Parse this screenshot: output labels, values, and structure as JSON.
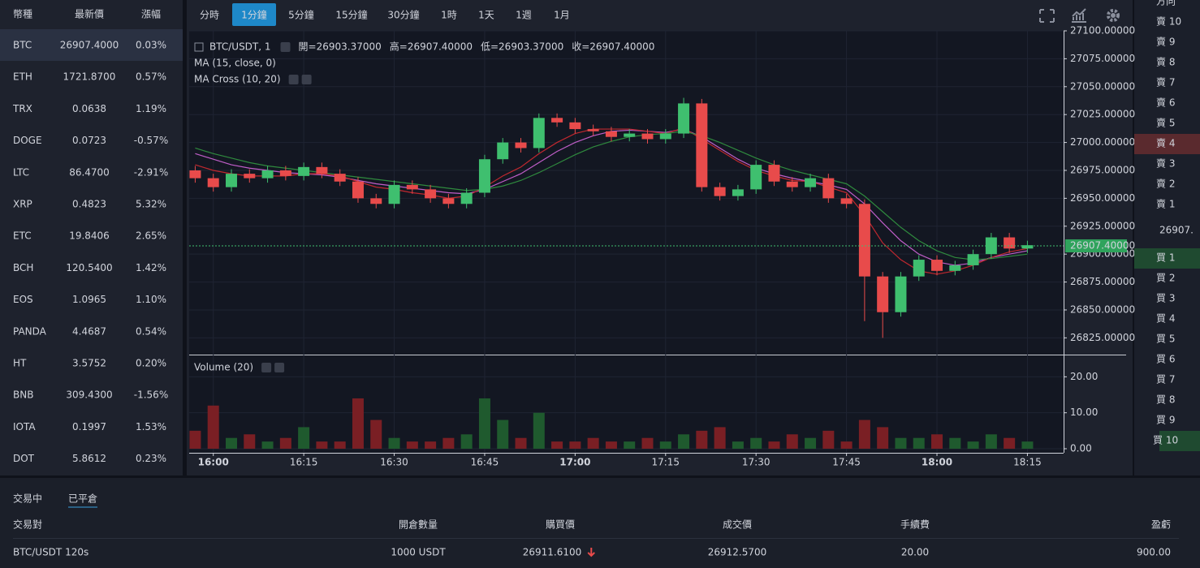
{
  "markets": {
    "headers": [
      "幣種",
      "最新價",
      "漲幅"
    ],
    "rows": [
      [
        "BTC",
        "26907.4000",
        "0.03%"
      ],
      [
        "ETH",
        "1721.8700",
        "0.57%"
      ],
      [
        "TRX",
        "0.0638",
        "1.19%"
      ],
      [
        "DOGE",
        "0.0723",
        "-0.57%"
      ],
      [
        "LTC",
        "86.4700",
        "-2.91%"
      ],
      [
        "XRP",
        "0.4823",
        "5.32%"
      ],
      [
        "ETC",
        "19.8406",
        "2.65%"
      ],
      [
        "BCH",
        "120.5400",
        "1.42%"
      ],
      [
        "EOS",
        "1.0965",
        "1.10%"
      ],
      [
        "PANDA",
        "4.4687",
        "0.54%"
      ],
      [
        "HT",
        "3.5752",
        "0.20%"
      ],
      [
        "BNB",
        "309.4300",
        "-1.56%"
      ],
      [
        "IOTA",
        "0.1997",
        "1.53%"
      ],
      [
        "DOT",
        "5.8612",
        "0.23%"
      ]
    ],
    "selected": 0
  },
  "toolbar": {
    "intervals": [
      "分時",
      "1分鐘",
      "5分鐘",
      "15分鐘",
      "30分鐘",
      "1時",
      "1天",
      "1週",
      "1月"
    ],
    "selected": 1
  },
  "chart_data": {
    "type": "candlestick",
    "title": "BTC/USDT, 1",
    "ohlc_legend": [
      {
        "label": "開=",
        "value": "26903.37000"
      },
      {
        "label": "高=",
        "value": "26907.40000"
      },
      {
        "label": "低=",
        "value": "26903.37000"
      },
      {
        "label": "收=",
        "value": "26907.40000"
      }
    ],
    "indicators": [
      "MA (15, close, 0)",
      "MA Cross (10, 20)"
    ],
    "volume_label": "Volume (20)",
    "up_color": "#3fbf6f",
    "down_color": "#e84b4b",
    "x": [
      "15:57",
      "16:00",
      "16:03",
      "16:06",
      "16:09",
      "16:12",
      "16:15",
      "16:18",
      "16:21",
      "16:24",
      "16:27",
      "16:30",
      "16:33",
      "16:36",
      "16:39",
      "16:42",
      "16:45",
      "16:48",
      "16:51",
      "16:54",
      "16:57",
      "17:00",
      "17:03",
      "17:06",
      "17:09",
      "17:12",
      "17:15",
      "17:18",
      "17:21",
      "17:24",
      "17:27",
      "17:30",
      "17:33",
      "17:36",
      "17:39",
      "17:42",
      "17:45",
      "17:48",
      "17:51",
      "17:54",
      "17:57",
      "18:00",
      "18:03",
      "18:06",
      "18:09",
      "18:12",
      "18:15"
    ],
    "open": [
      26975,
      26968,
      26960,
      26972,
      26968,
      26975,
      26970,
      26978,
      26972,
      26965,
      26950,
      26945,
      26962,
      26958,
      26950,
      26945,
      26955,
      26985,
      27000,
      26995,
      27022,
      27018,
      27012,
      27010,
      27005,
      27008,
      27003,
      27008,
      27035,
      26960,
      26952,
      26958,
      26980,
      26965,
      26960,
      26968,
      26950,
      26945,
      26880,
      26848,
      26880,
      26895,
      26885,
      26890,
      26900,
      26915,
      26905
    ],
    "high": [
      26979,
      26972,
      26976,
      26976,
      26979,
      26979,
      26982,
      26982,
      26976,
      26969,
      26954,
      26966,
      26966,
      26962,
      26954,
      26959,
      26989,
      27004,
      27004,
      27026,
      27026,
      27022,
      27016,
      27014,
      27012,
      27012,
      27012,
      27040,
      27039,
      26964,
      26962,
      26984,
      26984,
      26969,
      26972,
      26972,
      26954,
      26949,
      26884,
      26884,
      26899,
      26899,
      26894,
      26904,
      26919,
      26919,
      26912
    ],
    "low": [
      26964,
      26956,
      26956,
      26964,
      26964,
      26966,
      26966,
      26968,
      26961,
      26946,
      26941,
      26941,
      26954,
      26946,
      26941,
      26941,
      26951,
      26981,
      26991,
      26991,
      27014,
      27008,
      27006,
      27001,
      27001,
      26999,
      26999,
      27004,
      26956,
      26948,
      26948,
      26954,
      26961,
      26956,
      26956,
      26946,
      26941,
      26840,
      26825,
      26844,
      26876,
      26881,
      26881,
      26886,
      26896,
      26901,
      26901
    ],
    "close": [
      26968,
      26960,
      26972,
      26968,
      26975,
      26970,
      26978,
      26972,
      26965,
      26950,
      26945,
      26962,
      26958,
      26950,
      26945,
      26955,
      26985,
      27000,
      26995,
      27022,
      27018,
      27012,
      27010,
      27005,
      27008,
      27003,
      27008,
      27035,
      26960,
      26952,
      26958,
      26980,
      26965,
      26960,
      26968,
      26950,
      26945,
      26880,
      26848,
      26880,
      26895,
      26885,
      26890,
      26900,
      26915,
      26905,
      26908
    ],
    "volume": [
      5,
      12,
      3,
      4,
      2,
      3,
      6,
      2,
      2,
      14,
      8,
      3,
      2,
      2,
      3,
      4,
      14,
      8,
      3,
      10,
      2,
      2,
      3,
      2,
      2,
      3,
      2,
      4,
      5,
      6,
      2,
      3,
      2,
      4,
      3,
      5,
      2,
      8,
      6,
      3,
      3,
      4,
      3,
      2,
      4,
      3,
      2
    ],
    "lines": [
      {
        "color": "#c05ec8",
        "values": [
          26990,
          26985,
          26980,
          26977,
          26975,
          26973,
          26972,
          26971,
          26969,
          26966,
          26963,
          26961,
          26959,
          26957,
          26955,
          26954,
          26958,
          26965,
          26972,
          26982,
          26992,
          27000,
          27006,
          27010,
          27011,
          27010,
          27009,
          27012,
          27005,
          26995,
          26985,
          26977,
          26972,
          26968,
          26965,
          26962,
          26958,
          26945,
          26928,
          26912,
          26900,
          26893,
          26890,
          26892,
          26897,
          26900,
          26903
        ]
      },
      {
        "color": "#c0282f",
        "values": [
          26980,
          26975,
          26972,
          26970,
          26970,
          26970,
          26972,
          26972,
          26970,
          26965,
          26960,
          26958,
          26955,
          26953,
          26950,
          26952,
          26960,
          26970,
          26978,
          26990,
          27000,
          27008,
          27012,
          27012,
          27012,
          27010,
          27008,
          27013,
          27003,
          26993,
          26983,
          26975,
          26970,
          26966,
          26965,
          26960,
          26955,
          26935,
          26910,
          26895,
          26885,
          26882,
          26885,
          26890,
          26897,
          26902,
          26905
        ]
      },
      {
        "color": "#2f8a3e",
        "values": [
          26995,
          26990,
          26986,
          26982,
          26979,
          26977,
          26975,
          26973,
          26971,
          26969,
          26967,
          26965,
          26963,
          26961,
          26959,
          26957,
          26958,
          26961,
          26966,
          26973,
          26981,
          26989,
          26996,
          27001,
          27005,
          27007,
          27008,
          27010,
          27006,
          27000,
          26993,
          26986,
          26980,
          26975,
          26971,
          26967,
          26963,
          26952,
          26938,
          26924,
          26912,
          26903,
          26897,
          26895,
          26896,
          26898,
          26900
        ]
      }
    ],
    "xlim": [
      "15:56",
      "18:21"
    ],
    "xticks": [
      "16:00",
      "16:15",
      "16:30",
      "16:45",
      "17:00",
      "17:15",
      "17:30",
      "17:45",
      "18:00",
      "18:15"
    ],
    "ylim": [
      26810,
      27100
    ],
    "yticks": [
      {
        "value": 26825,
        "label": "26825.00000"
      },
      {
        "value": 26850,
        "label": "26850.00000"
      },
      {
        "value": 26875,
        "label": "26875.00000"
      },
      {
        "value": 26900,
        "label": "26900.00000"
      },
      {
        "value": 26925,
        "label": "26925.00000"
      },
      {
        "value": 26950,
        "label": "26950.00000"
      },
      {
        "value": 26975,
        "label": "26975.00000"
      },
      {
        "value": 27000,
        "label": "27000.00000"
      },
      {
        "value": 27025,
        "label": "27025.00000"
      },
      {
        "value": 27050,
        "label": "27050.00000"
      },
      {
        "value": 27075,
        "label": "27075.00000"
      },
      {
        "value": 27100,
        "label": "27100.00000"
      }
    ],
    "last_price": {
      "value": 26907.4,
      "label": "26907.40000"
    },
    "y2lim": [
      0,
      25.5
    ],
    "y2ticks": [
      {
        "value": 0,
        "label": "0.00"
      },
      {
        "value": 10,
        "label": "10.00"
      },
      {
        "value": 20,
        "label": "20.00"
      }
    ],
    "grid": true
  },
  "order_book": {
    "header": "方向",
    "asks": [
      "賣 10",
      "賣 9",
      "賣 8",
      "賣 7",
      "賣 6",
      "賣 5",
      "賣 4",
      "賣 3",
      "賣 2",
      "賣 1"
    ],
    "highlight_ask": 6,
    "price": "26907.",
    "bids": [
      "買 1",
      "買 2",
      "買 3",
      "買 4",
      "買 5",
      "買 6",
      "買 7",
      "買 8",
      "買 9",
      "買 10"
    ],
    "highlight_bids": [
      0,
      9
    ]
  },
  "positions": {
    "tabs": [
      "交易中",
      "已平倉"
    ],
    "headers": [
      "交易對",
      "開倉數量",
      "購買價",
      "成交價",
      "手續費",
      "盈虧"
    ],
    "rows": [
      [
        "BTC/USDT 120s",
        "1000 USDT",
        "26911.6100",
        "26912.5700",
        "20.00",
        "900.00"
      ]
    ]
  }
}
